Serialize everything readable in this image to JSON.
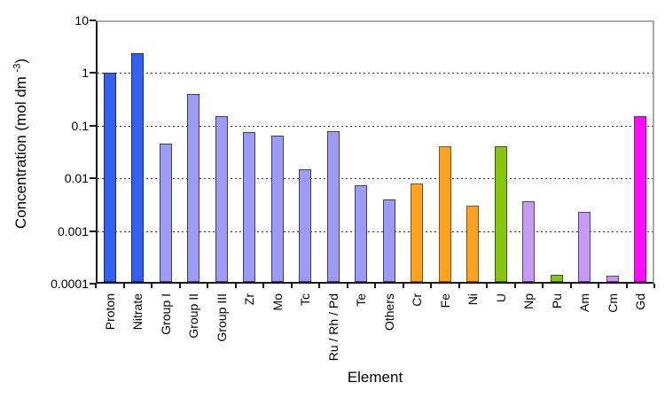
{
  "chart_data": {
    "type": "bar",
    "title": "",
    "xlabel": "Element",
    "ylabel": "Concentration (mol dm -3)",
    "ylabel_parts": {
      "prefix": "Concentration (mol dm ",
      "sup": "-3",
      "suffix": ")"
    },
    "yscale": "log",
    "ylim": [
      0.0001,
      10
    ],
    "y_axis_ticks": [
      "10",
      "1",
      "0.1",
      "0.01",
      "0.001",
      "0.0001"
    ],
    "gridlines_at": [
      1,
      0.1,
      0.01,
      0.001
    ],
    "legend": "none",
    "bars": [
      {
        "label": "Proton",
        "value": 1.0,
        "color": "blue"
      },
      {
        "label": "Nitrate",
        "value": 2.4,
        "color": "blue"
      },
      {
        "label": "Group I",
        "value": 0.045,
        "color": "periwinkle"
      },
      {
        "label": "Group II",
        "value": 0.4,
        "color": "periwinkle"
      },
      {
        "label": "Group III",
        "value": 0.15,
        "color": "periwinkle"
      },
      {
        "label": "Zr",
        "value": 0.075,
        "color": "periwinkle"
      },
      {
        "label": "Mo",
        "value": 0.065,
        "color": "periwinkle"
      },
      {
        "label": "Tc",
        "value": 0.015,
        "color": "periwinkle"
      },
      {
        "label": "Ru / Rh / Pd",
        "value": 0.078,
        "color": "periwinkle"
      },
      {
        "label": "Te",
        "value": 0.0075,
        "color": "periwinkle"
      },
      {
        "label": "Others",
        "value": 0.004,
        "color": "periwinkle"
      },
      {
        "label": "Cr",
        "value": 0.008,
        "color": "orange"
      },
      {
        "label": "Fe",
        "value": 0.04,
        "color": "orange"
      },
      {
        "label": "Ni",
        "value": 0.003,
        "color": "orange"
      },
      {
        "label": "U",
        "value": 0.04,
        "color": "green"
      },
      {
        "label": "Np",
        "value": 0.0037,
        "color": "lilac"
      },
      {
        "label": "Pu",
        "value": 0.00015,
        "color": "green"
      },
      {
        "label": "Am",
        "value": 0.0023,
        "color": "lilac"
      },
      {
        "label": "Cm",
        "value": 0.00014,
        "color": "lilac"
      },
      {
        "label": "Gd",
        "value": 0.15,
        "color": "magenta"
      }
    ],
    "colors": {
      "blue": {
        "fill": "#3161ee",
        "stroke": "#1c2b75"
      },
      "periwinkle": {
        "fill": "#9c9cf7",
        "stroke": "#3d3d66"
      },
      "orange": {
        "fill": "#ffa21f",
        "stroke": "#7d5217"
      },
      "green": {
        "fill": "#85c60e",
        "stroke": "#435508"
      },
      "lilac": {
        "fill": "#c59bef",
        "stroke": "#5d3c8f"
      },
      "magenta": {
        "fill": "#fb0cfb",
        "stroke": "#8e128e"
      }
    },
    "axis_colors": {
      "axis": "#1a1a1a",
      "frame": "#a9a9a9",
      "gridline": "#3a3a3a"
    }
  }
}
